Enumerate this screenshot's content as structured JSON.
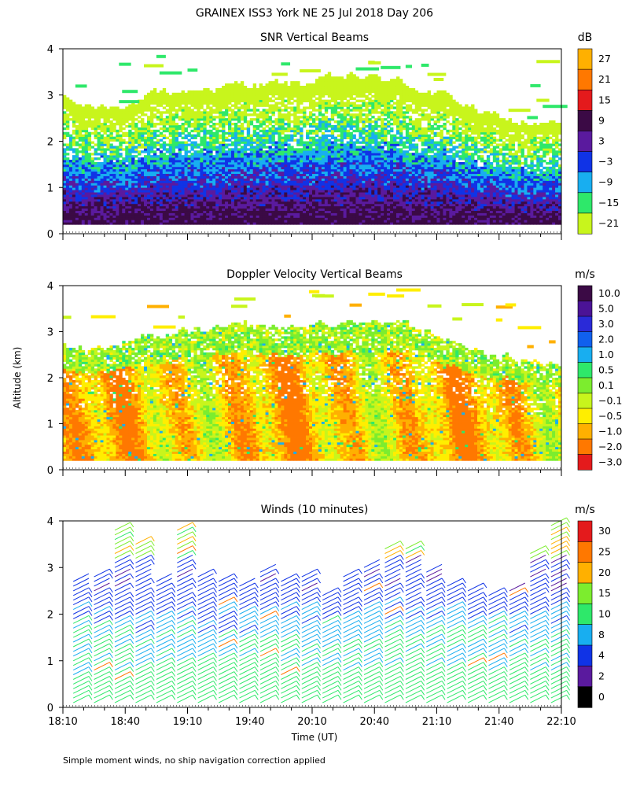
{
  "figure": {
    "title": "GRAINEX ISS3 York NE  25 Jul 2018 Day 206",
    "ylabel": "Altitude (km)",
    "xlabel": "Time (UT)",
    "footnote": "Simple moment winds, no ship navigation correction applied"
  },
  "chart_data": [
    {
      "type": "heatmap",
      "title": "SNR Vertical Beams",
      "ylim": [
        0,
        4
      ],
      "y_ticks": [
        "0",
        "1",
        "2",
        "3",
        "4"
      ],
      "colorbar": {
        "unit": "dB",
        "labels": [
          "27",
          "21",
          "15",
          "9",
          "3",
          "−3",
          "−9",
          "−15",
          "−21"
        ],
        "colors": [
          "#ffb000",
          "#ff7800",
          "#e41a1c",
          "#3b0a45",
          "#5a1a9e",
          "#1033e6",
          "#18aef0",
          "#2ee86a",
          "#c8f51c"
        ]
      },
      "observed": {
        "data_top_km_range": [
          2.3,
          3.6
        ],
        "strong_layer_km_range": [
          0.1,
          0.9
        ],
        "min_altitude_km": 0.2
      }
    },
    {
      "type": "heatmap",
      "title": "Doppler Velocity Vertical Beams",
      "ylim": [
        0,
        4
      ],
      "y_ticks": [
        "0",
        "1",
        "2",
        "3",
        "4"
      ],
      "colorbar": {
        "unit": "m/s",
        "labels": [
          "10.0",
          "5.0",
          "3.0",
          "2.0",
          "1.0",
          "0.5",
          "0.1",
          "−0.1",
          "−0.5",
          "−1.0",
          "−2.0",
          "−3.0"
        ],
        "colors": [
          "#3b0a45",
          "#4b1396",
          "#2a2ad8",
          "#1060ee",
          "#18aef0",
          "#2ee86a",
          "#7ced2e",
          "#c8f51c",
          "#ffee00",
          "#ffb000",
          "#ff7800",
          "#e41a1c"
        ]
      },
      "observed": {
        "data_top_km_range": [
          2.3,
          3.4
        ],
        "dominant_values": [
          "−0.1",
          "−0.5",
          "−1.0"
        ]
      }
    },
    {
      "type": "wind_barbs",
      "title": "Winds (10 minutes)",
      "ylim": [
        0,
        4
      ],
      "y_ticks": [
        "0",
        "1",
        "2",
        "3",
        "4"
      ],
      "x_range": [
        "18:10",
        "22:10"
      ],
      "x_ticks": [
        "18:10",
        "18:40",
        "19:10",
        "19:40",
        "20:10",
        "20:40",
        "21:10",
        "21:40",
        "22:10"
      ],
      "colorbar": {
        "unit": "m/s",
        "labels": [
          "30",
          "25",
          "20",
          "15",
          "10",
          "8",
          "4",
          "2",
          "0"
        ],
        "colors": [
          "#e41a1c",
          "#ff7800",
          "#ffb000",
          "#7ced2e",
          "#2ee86a",
          "#18aef0",
          "#1033e6",
          "#5a1a9e",
          "#000000"
        ]
      },
      "profile_times": [
        "18:15",
        "18:25",
        "18:35",
        "18:45",
        "18:55",
        "19:05",
        "19:15",
        "19:25",
        "19:35",
        "19:45",
        "19:55",
        "20:05",
        "20:15",
        "20:25",
        "20:35",
        "20:45",
        "20:55",
        "21:05",
        "21:15",
        "21:25",
        "21:35",
        "21:45",
        "21:55",
        "22:05"
      ],
      "profile_top_km": [
        2.8,
        2.9,
        3.9,
        3.6,
        2.8,
        3.9,
        2.9,
        2.8,
        2.7,
        3.0,
        2.8,
        2.9,
        2.5,
        2.9,
        3.1,
        3.5,
        3.5,
        3.0,
        2.7,
        2.6,
        2.5,
        2.6,
        3.4,
        4.0
      ],
      "profile_level_speed_ms": [
        {
          "km": 0.3,
          "speed": 13
        },
        {
          "km": 1.0,
          "speed": 10
        },
        {
          "km": 1.8,
          "speed": 9
        },
        {
          "km": 2.5,
          "speed": 5
        }
      ]
    }
  ]
}
